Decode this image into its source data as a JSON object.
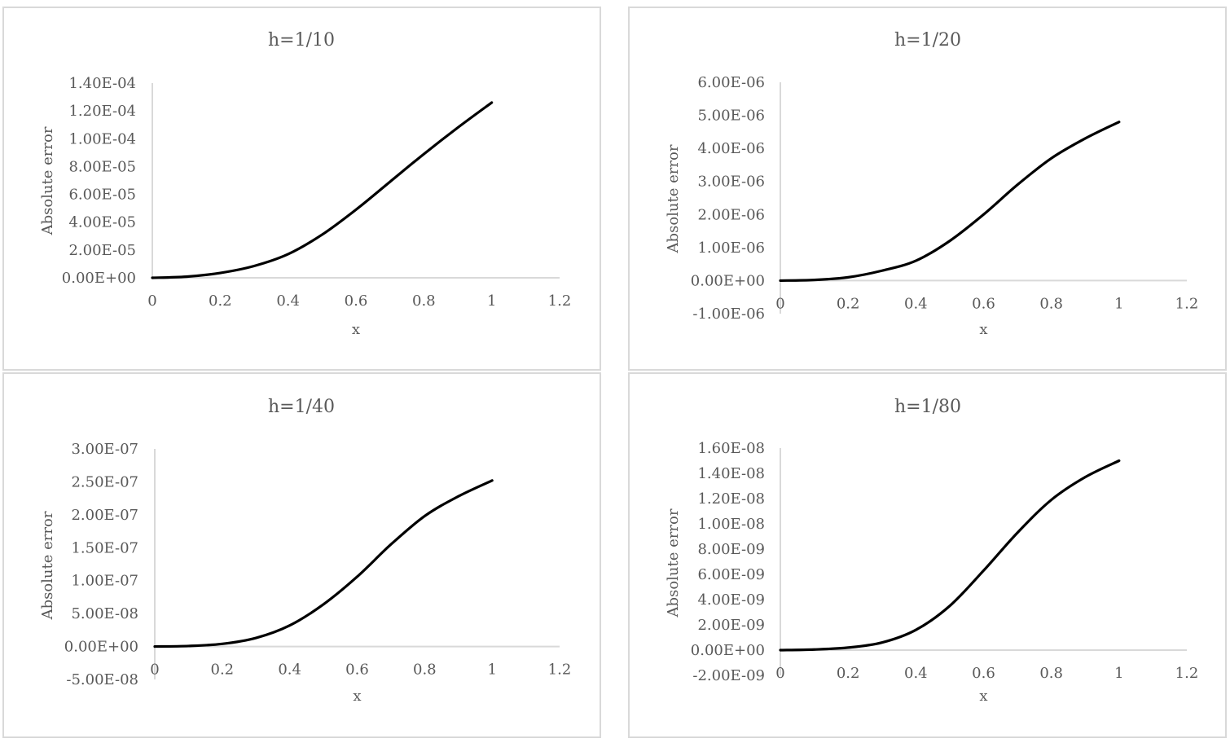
{
  "chart_data": [
    {
      "type": "line",
      "title": "h=1/10",
      "xlabel": "x",
      "ylabel": "Absolute error",
      "xlim": [
        0,
        1.2
      ],
      "ylim": [
        0,
        0.00014
      ],
      "x_ticks": [
        "0",
        "0.2",
        "0.4",
        "0.6",
        "0.8",
        "1",
        "1.2"
      ],
      "y_ticks": [
        "0.00E+00",
        "2.00E-05",
        "4.00E-05",
        "6.00E-05",
        "8.00E-05",
        "1.00E-04",
        "1.20E-04",
        "1.40E-04"
      ],
      "grid": false,
      "series": [
        {
          "color": "#000000",
          "x": [
            0,
            0.1,
            0.2,
            0.3,
            0.4,
            0.5,
            0.6,
            0.7,
            0.8,
            0.9,
            1.0
          ],
          "y": [
            0,
            8e-07,
            3.5e-06,
            8.5e-06,
            1.7e-05,
            3.1e-05,
            4.9e-05,
            6.9e-05,
            8.9e-05,
            0.000108,
            0.000126
          ]
        }
      ]
    },
    {
      "type": "line",
      "title": "h=1/20",
      "xlabel": "x",
      "ylabel": "Absolute error",
      "xlim": [
        0,
        1.2
      ],
      "ylim": [
        -1e-06,
        6e-06
      ],
      "x_ticks": [
        "0",
        "0.2",
        "0.4",
        "0.6",
        "0.8",
        "1",
        "1.2"
      ],
      "y_ticks": [
        "-1.00E-06",
        "0.00E+00",
        "1.00E-06",
        "2.00E-06",
        "3.00E-06",
        "4.00E-06",
        "5.00E-06",
        "6.00E-06"
      ],
      "grid": false,
      "series": [
        {
          "color": "#000000",
          "x": [
            0,
            0.1,
            0.2,
            0.3,
            0.4,
            0.5,
            0.6,
            0.7,
            0.8,
            0.9,
            1.0
          ],
          "y": [
            0,
            2e-08,
            1e-07,
            3e-07,
            6e-07,
            1.2e-06,
            2e-06,
            2.9e-06,
            3.7e-06,
            4.3e-06,
            4.8e-06
          ]
        }
      ]
    },
    {
      "type": "line",
      "title": "h=1/40",
      "xlabel": "x",
      "ylabel": "Absolute error",
      "xlim": [
        0,
        1.2
      ],
      "ylim": [
        -5e-08,
        3e-07
      ],
      "x_ticks": [
        "0",
        "0.2",
        "0.4",
        "0.6",
        "0.8",
        "1",
        "1.2"
      ],
      "y_ticks": [
        "-5.00E-08",
        "0.00E+00",
        "5.00E-08",
        "1.00E-07",
        "1.50E-07",
        "2.00E-07",
        "2.50E-07",
        "3.00E-07"
      ],
      "grid": false,
      "series": [
        {
          "color": "#000000",
          "x": [
            0,
            0.1,
            0.2,
            0.3,
            0.4,
            0.5,
            0.6,
            0.7,
            0.8,
            0.9,
            1.0
          ],
          "y": [
            0,
            8e-10,
            4e-09,
            1.3e-08,
            3.2e-08,
            6.4e-08,
            1.06e-07,
            1.55e-07,
            1.98e-07,
            2.28e-07,
            2.52e-07
          ]
        }
      ]
    },
    {
      "type": "line",
      "title": "h=1/80",
      "xlabel": "x",
      "ylabel": "Absolute error",
      "xlim": [
        0,
        1.2
      ],
      "ylim": [
        -2e-09,
        1.6e-08
      ],
      "x_ticks": [
        "0",
        "0.2",
        "0.4",
        "0.6",
        "0.8",
        "1",
        "1.2"
      ],
      "y_ticks": [
        "-2.00E-09",
        "0.00E+00",
        "2.00E-09",
        "4.00E-09",
        "6.00E-09",
        "8.00E-09",
        "1.00E-08",
        "1.20E-08",
        "1.40E-08",
        "1.60E-08"
      ],
      "grid": false,
      "series": [
        {
          "color": "#000000",
          "x": [
            0,
            0.1,
            0.2,
            0.3,
            0.4,
            0.5,
            0.6,
            0.7,
            0.8,
            0.9,
            1.0
          ],
          "y": [
            0,
            5e-11,
            2e-10,
            6e-10,
            1.6e-09,
            3.5e-09,
            6.3e-09,
            9.3e-09,
            1.19e-08,
            1.37e-08,
            1.5e-08
          ]
        }
      ]
    }
  ]
}
